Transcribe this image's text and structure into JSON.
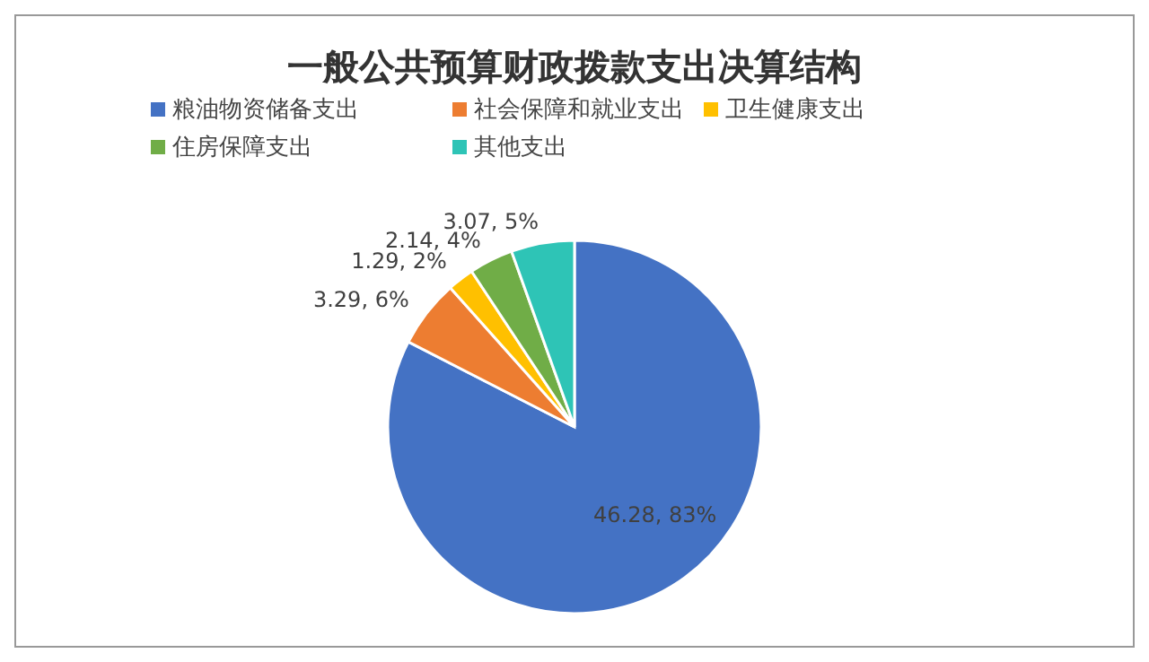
{
  "chart_data": {
    "type": "pie",
    "title": "一般公共预算财政拨款支出决算结构",
    "categories": [
      "粮油物资储备支出",
      "社会保障和就业支出",
      "卫生健康支出",
      "住房保障支出",
      "其他支出"
    ],
    "values": [
      46.28,
      3.29,
      1.29,
      2.14,
      3.07
    ],
    "colors": [
      "#4472c4",
      "#ed7d31",
      "#ffc000",
      "#70ad47",
      "#2ec4b6"
    ],
    "value_labels": [
      "46.28, 83%",
      "3.29, 6%",
      "1.29, 2%",
      "2.14, 4%",
      "3.07, 5%"
    ],
    "legend": "top"
  }
}
